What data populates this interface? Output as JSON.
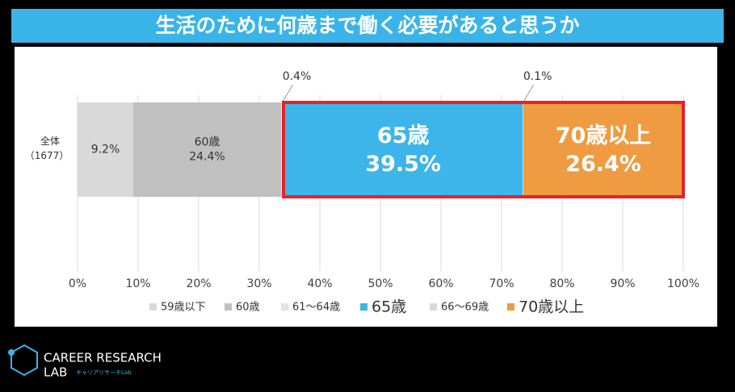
{
  "chart_data": {
    "type": "stacked-barh",
    "title": "生活のために何歳まで働く必要があると思うか",
    "categories": [
      "全体"
    ],
    "category_counts": [
      "（1677）"
    ],
    "series": [
      {
        "name": "59歳以下",
        "color": "#d9d9d9",
        "values": [
          9.2
        ],
        "value_labels": [
          "9.2%"
        ],
        "label_style": "value"
      },
      {
        "name": "60歳",
        "color": "#c0c0c0",
        "values": [
          24.4
        ],
        "value_labels": [
          "24.4%"
        ],
        "label_style": "name-value"
      },
      {
        "name": "61～64歳",
        "color": "#e3e3e3",
        "values": [
          0.4
        ],
        "value_labels": [
          "0.4%"
        ],
        "label_style": "callout"
      },
      {
        "name": "65歳",
        "color": "#3db5ea",
        "values": [
          39.5
        ],
        "value_labels": [
          "39.5%"
        ],
        "label_style": "name-value-large"
      },
      {
        "name": "66～69歳",
        "color": "#d9d9d9",
        "values": [
          0.1
        ],
        "value_labels": [
          "0.1%"
        ],
        "label_style": "callout"
      },
      {
        "name": "70歳以上",
        "color": "#ee9b42",
        "values": [
          26.4
        ],
        "value_labels": [
          "26.4%"
        ],
        "label_style": "name-value-large"
      }
    ],
    "xlim": [
      0,
      100
    ],
    "xticks": [
      {
        "value": 0,
        "label": "0%"
      },
      {
        "value": 10,
        "label": "10%"
      },
      {
        "value": 20,
        "label": "20%"
      },
      {
        "value": 30,
        "label": "30%"
      },
      {
        "value": 40,
        "label": "40%"
      },
      {
        "value": 50,
        "label": "50%"
      },
      {
        "value": 60,
        "label": "60%"
      },
      {
        "value": 70,
        "label": "70%"
      },
      {
        "value": 80,
        "label": "80%"
      },
      {
        "value": 90,
        "label": "90%"
      },
      {
        "value": 100,
        "label": "100%"
      }
    ],
    "grid": true,
    "legend": "bottom",
    "highlight_color": "#e8202a"
  },
  "logo": {
    "line1": "CAREER RESEARCH",
    "line2": "LAB",
    "subtitle": "キャリアリサーチLab"
  }
}
